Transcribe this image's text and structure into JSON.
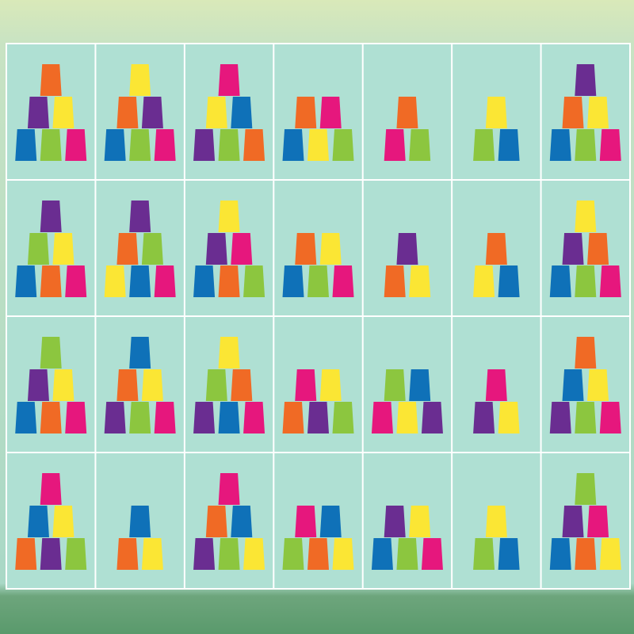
{
  "cells": [
    [
      [
        "#f06a25"
      ],
      [
        "#6a2d91",
        "#fbe634"
      ],
      [
        "#0f71b8",
        "#8cc63f",
        "#e6177d"
      ]
    ],
    [
      [
        "#fbe634"
      ],
      [
        "#f06a25",
        "#6a2d91"
      ],
      [
        "#0f71b8",
        "#8cc63f",
        "#e6177d"
      ]
    ],
    [
      [
        "#e6177d"
      ],
      [
        "#fbe634",
        "#0f71b8"
      ],
      [
        "#6a2d91",
        "#8cc63f",
        "#f06a25"
      ]
    ],
    [
      [
        "#f06a25",
        "#e6177d"
      ],
      [
        "#0f71b8",
        "#fbe634",
        "#8cc63f"
      ]
    ],
    [
      [
        "#f06a25"
      ],
      [
        "#e6177d",
        "#8cc63f"
      ]
    ],
    [
      [
        "#fbe634"
      ],
      [
        "#8cc63f",
        "#0f71b8"
      ]
    ],
    [
      [
        "#6a2d91"
      ],
      [
        "#f06a25",
        "#fbe634"
      ],
      [
        "#0f71b8",
        "#8cc63f",
        "#e6177d"
      ]
    ],
    [
      [
        "#6a2d91"
      ],
      [
        "#8cc63f",
        "#fbe634"
      ],
      [
        "#0f71b8",
        "#f06a25",
        "#e6177d"
      ]
    ],
    [
      [
        "#6a2d91"
      ],
      [
        "#f06a25",
        "#8cc63f"
      ],
      [
        "#fbe634",
        "#0f71b8",
        "#e6177d"
      ]
    ],
    [
      [
        "#fbe634"
      ],
      [
        "#6a2d91",
        "#e6177d"
      ],
      [
        "#0f71b8",
        "#f06a25",
        "#8cc63f"
      ]
    ],
    [
      [
        "#f06a25",
        "#fbe634"
      ],
      [
        "#0f71b8",
        "#8cc63f",
        "#e6177d"
      ]
    ],
    [
      [
        "#6a2d91"
      ],
      [
        "#f06a25",
        "#fbe634"
      ]
    ],
    [
      [
        "#f06a25"
      ],
      [
        "#fbe634",
        "#0f71b8"
      ]
    ],
    [
      [
        "#fbe634"
      ],
      [
        "#6a2d91",
        "#f06a25"
      ],
      [
        "#0f71b8",
        "#8cc63f",
        "#e6177d"
      ]
    ],
    [
      [
        "#8cc63f"
      ],
      [
        "#6a2d91",
        "#fbe634"
      ],
      [
        "#0f71b8",
        "#f06a25",
        "#e6177d"
      ]
    ],
    [
      [
        "#0f71b8"
      ],
      [
        "#f06a25",
        "#fbe634"
      ],
      [
        "#6a2d91",
        "#8cc63f",
        "#e6177d"
      ]
    ],
    [
      [
        "#fbe634"
      ],
      [
        "#8cc63f",
        "#f06a25"
      ],
      [
        "#6a2d91",
        "#0f71b8",
        "#e6177d"
      ]
    ],
    [
      [
        "#e6177d",
        "#fbe634"
      ],
      [
        "#f06a25",
        "#6a2d91",
        "#8cc63f"
      ]
    ],
    [
      [
        "#8cc63f",
        "#0f71b8"
      ],
      [
        "#e6177d",
        "#fbe634",
        "#6a2d91"
      ]
    ],
    [
      [
        "#e6177d"
      ],
      [
        "#6a2d91",
        "#fbe634"
      ]
    ],
    [
      [
        "#f06a25"
      ],
      [
        "#0f71b8",
        "#fbe634"
      ],
      [
        "#6a2d91",
        "#8cc63f",
        "#e6177d"
      ]
    ],
    [
      [
        "#e6177d"
      ],
      [
        "#0f71b8",
        "#fbe634"
      ],
      [
        "#f06a25",
        "#6a2d91",
        "#8cc63f"
      ]
    ],
    [
      [
        "#0f71b8"
      ],
      [
        "#f06a25",
        "#fbe634"
      ]
    ],
    [
      [
        "#e6177d"
      ],
      [
        "#f06a25",
        "#0f71b8"
      ],
      [
        "#6a2d91",
        "#8cc63f",
        "#fbe634"
      ]
    ],
    [
      [
        "#e6177d",
        "#0f71b8"
      ],
      [
        "#8cc63f",
        "#f06a25",
        "#fbe634"
      ]
    ],
    [
      [
        "#6a2d91",
        "#fbe634"
      ],
      [
        "#0f71b8",
        "#8cc63f",
        "#e6177d"
      ]
    ],
    [
      [
        "#fbe634"
      ],
      [
        "#8cc63f",
        "#0f71b8"
      ]
    ],
    [
      [
        "#8cc63f"
      ],
      [
        "#6a2d91",
        "#e6177d"
      ],
      [
        "#0f71b8",
        "#f06a25",
        "#fbe634"
      ]
    ]
  ]
}
